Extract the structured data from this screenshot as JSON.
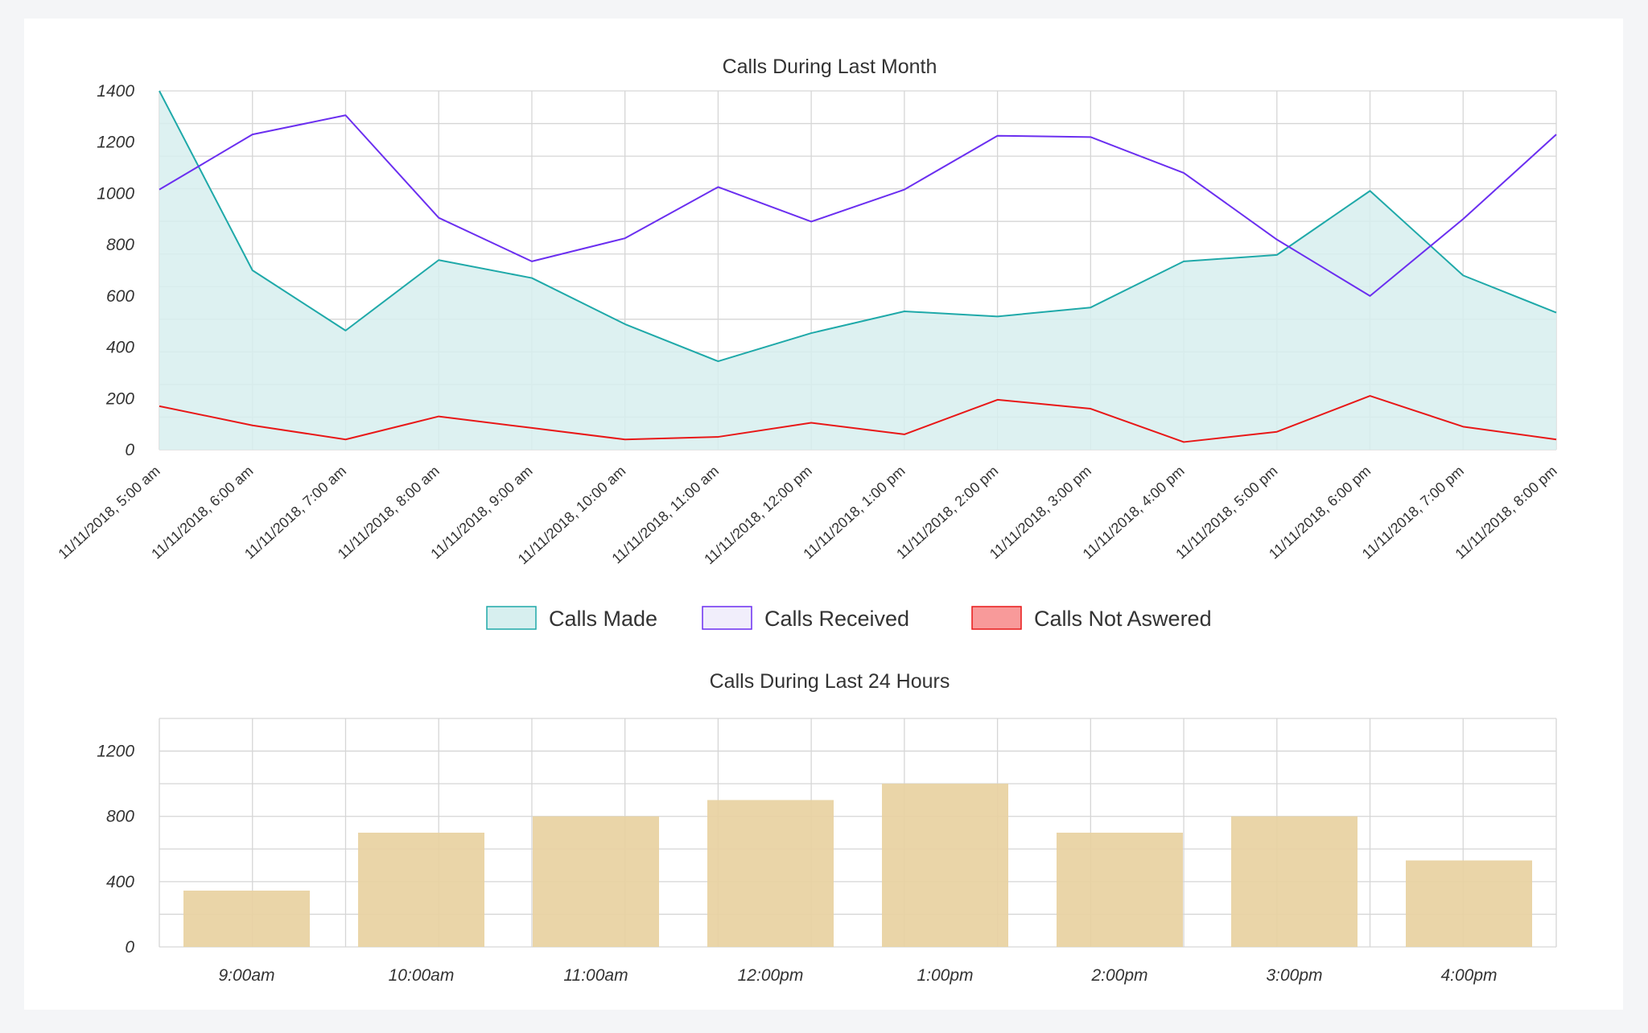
{
  "chart_data": [
    {
      "type": "area",
      "title": "Calls During Last Month",
      "categories": [
        "11/11/2018, 5:00 am",
        "11/11/2018, 6:00 am",
        "11/11/2018, 7:00 am",
        "11/11/2018, 8:00 am",
        "11/11/2018, 9:00 am",
        "11/11/2018, 10:00 am",
        "11/11/2018, 11:00 am",
        "11/11/2018, 12:00 pm",
        "11/11/2018, 1:00 pm",
        "11/11/2018, 2:00 pm",
        "11/11/2018, 3:00 pm",
        "11/11/2018, 4:00 pm",
        "11/11/2018, 5:00 pm",
        "11/11/2018, 6:00 pm",
        "11/11/2018, 7:00 pm",
        "11/11/2018, 8:00 pm"
      ],
      "yticks": [
        "0",
        "200",
        "400",
        "600",
        "800",
        "1000",
        "1200",
        "1400"
      ],
      "ylim": [
        0,
        1400
      ],
      "grid": true,
      "legend_position": "bottom",
      "series": [
        {
          "name": "Calls Made",
          "style": "area",
          "color": "#1fa9a9",
          "fill": "#d7efef",
          "values": [
            1400,
            700,
            465,
            740,
            670,
            490,
            345,
            455,
            540,
            520,
            555,
            735,
            760,
            1010,
            680,
            535
          ]
        },
        {
          "name": "Calls Received",
          "style": "line",
          "color": "#6b2ff0",
          "fill": "#f1eefb",
          "values": [
            1015,
            1230,
            1305,
            905,
            735,
            825,
            1025,
            890,
            1015,
            1225,
            1220,
            1080,
            820,
            600,
            900,
            1230
          ]
        },
        {
          "name": "Calls Not Aswered",
          "style": "line",
          "color": "#e81818",
          "fill": "#f89a9a",
          "values": [
            170,
            95,
            40,
            130,
            85,
            40,
            50,
            105,
            60,
            195,
            160,
            30,
            70,
            210,
            90,
            40
          ]
        }
      ]
    },
    {
      "type": "bar",
      "title": "Calls During Last 24 Hours",
      "categories": [
        "9:00am",
        "10:00am",
        "11:00am",
        "12:00pm",
        "1:00pm",
        "2:00pm",
        "3:00pm",
        "4:00pm"
      ],
      "values": [
        345,
        700,
        800,
        900,
        1000,
        700,
        800,
        530
      ],
      "yticks": [
        "0",
        "400",
        "800",
        "1200"
      ],
      "ylim": [
        0,
        1400
      ],
      "grid": true,
      "color": "#e8d1a1"
    }
  ]
}
